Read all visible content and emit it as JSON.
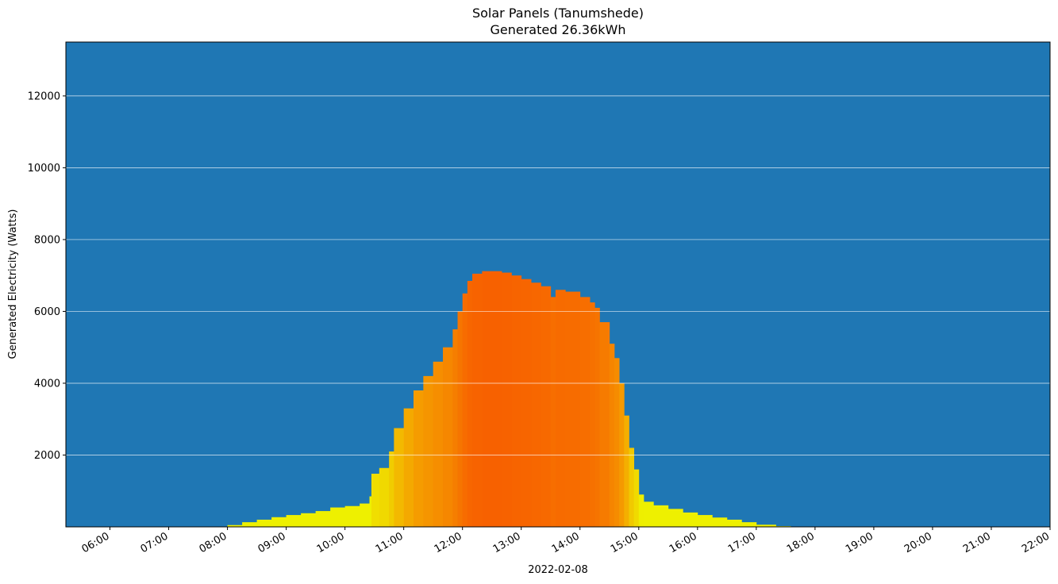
{
  "chart_data": {
    "type": "area",
    "title": "Solar Panels (Tanumshede)",
    "subtitle": "Generated 26.36kWh",
    "xlabel": "2022-02-08",
    "ylabel": "Generated Electricity (Watts)",
    "x_range": [
      "05:15",
      "22:00"
    ],
    "ylim": [
      0,
      13500
    ],
    "y_ticks": [
      2000,
      4000,
      6000,
      8000,
      10000,
      12000
    ],
    "x_ticks": [
      "06:00",
      "07:00",
      "08:00",
      "09:00",
      "10:00",
      "11:00",
      "12:00",
      "13:00",
      "14:00",
      "15:00",
      "16:00",
      "17:00",
      "18:00",
      "19:00",
      "20:00",
      "21:00",
      "22:00"
    ],
    "grid": "horizontal",
    "background_color": "#1f77b4",
    "gradient_colors": {
      "low": "#eef000",
      "mid": "#f5a000",
      "high": "#f76000"
    },
    "series": [
      {
        "values": [
          [
            "08:00",
            50
          ],
          [
            "08:15",
            130
          ],
          [
            "08:30",
            200
          ],
          [
            "08:45",
            270
          ],
          [
            "09:00",
            330
          ],
          [
            "09:15",
            380
          ],
          [
            "09:30",
            440
          ],
          [
            "09:45",
            540
          ],
          [
            "10:00",
            580
          ],
          [
            "10:15",
            650
          ],
          [
            "10:25",
            850
          ],
          [
            "10:27",
            1480
          ],
          [
            "10:35",
            1640
          ],
          [
            "10:45",
            2100
          ],
          [
            "10:50",
            2750
          ],
          [
            "11:00",
            3300
          ],
          [
            "11:10",
            3800
          ],
          [
            "11:20",
            4200
          ],
          [
            "11:30",
            4600
          ],
          [
            "11:40",
            5000
          ],
          [
            "11:50",
            5500
          ],
          [
            "11:55",
            6000
          ],
          [
            "12:00",
            6500
          ],
          [
            "12:05",
            6850
          ],
          [
            "12:10",
            7050
          ],
          [
            "12:20",
            7120
          ],
          [
            "12:30",
            7120
          ],
          [
            "12:40",
            7080
          ],
          [
            "12:50",
            7000
          ],
          [
            "13:00",
            6900
          ],
          [
            "13:10",
            6800
          ],
          [
            "13:20",
            6700
          ],
          [
            "13:30",
            6400
          ],
          [
            "13:35",
            6600
          ],
          [
            "13:45",
            6550
          ],
          [
            "14:00",
            6400
          ],
          [
            "14:10",
            6250
          ],
          [
            "14:15",
            6100
          ],
          [
            "14:20",
            5700
          ],
          [
            "14:30",
            5100
          ],
          [
            "14:35",
            4700
          ],
          [
            "14:40",
            4000
          ],
          [
            "14:45",
            3100
          ],
          [
            "14:50",
            2200
          ],
          [
            "14:55",
            1600
          ],
          [
            "15:00",
            900
          ],
          [
            "15:05",
            700
          ],
          [
            "15:15",
            600
          ],
          [
            "15:30",
            500
          ],
          [
            "15:45",
            400
          ],
          [
            "16:00",
            330
          ],
          [
            "16:15",
            260
          ],
          [
            "16:30",
            200
          ],
          [
            "16:45",
            130
          ],
          [
            "17:00",
            60
          ],
          [
            "17:20",
            20
          ],
          [
            "17:35",
            10
          ]
        ]
      }
    ]
  }
}
